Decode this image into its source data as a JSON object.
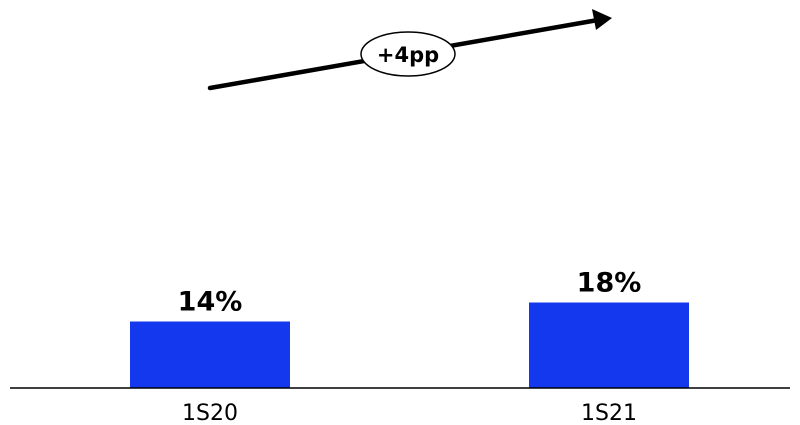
{
  "chart_data": {
    "type": "bar",
    "categories": [
      "1S20",
      "1S21"
    ],
    "values": [
      14,
      18
    ],
    "value_labels": [
      "14%",
      "18%"
    ],
    "unit": "%",
    "title": "",
    "xlabel": "",
    "ylabel": "",
    "ylim": [
      0,
      25
    ],
    "grid": false,
    "legend": "none",
    "bar_color": "#1338ee",
    "annotation": {
      "text": "+4pp",
      "type": "arrow",
      "from": "1S20",
      "to": "1S21"
    }
  }
}
